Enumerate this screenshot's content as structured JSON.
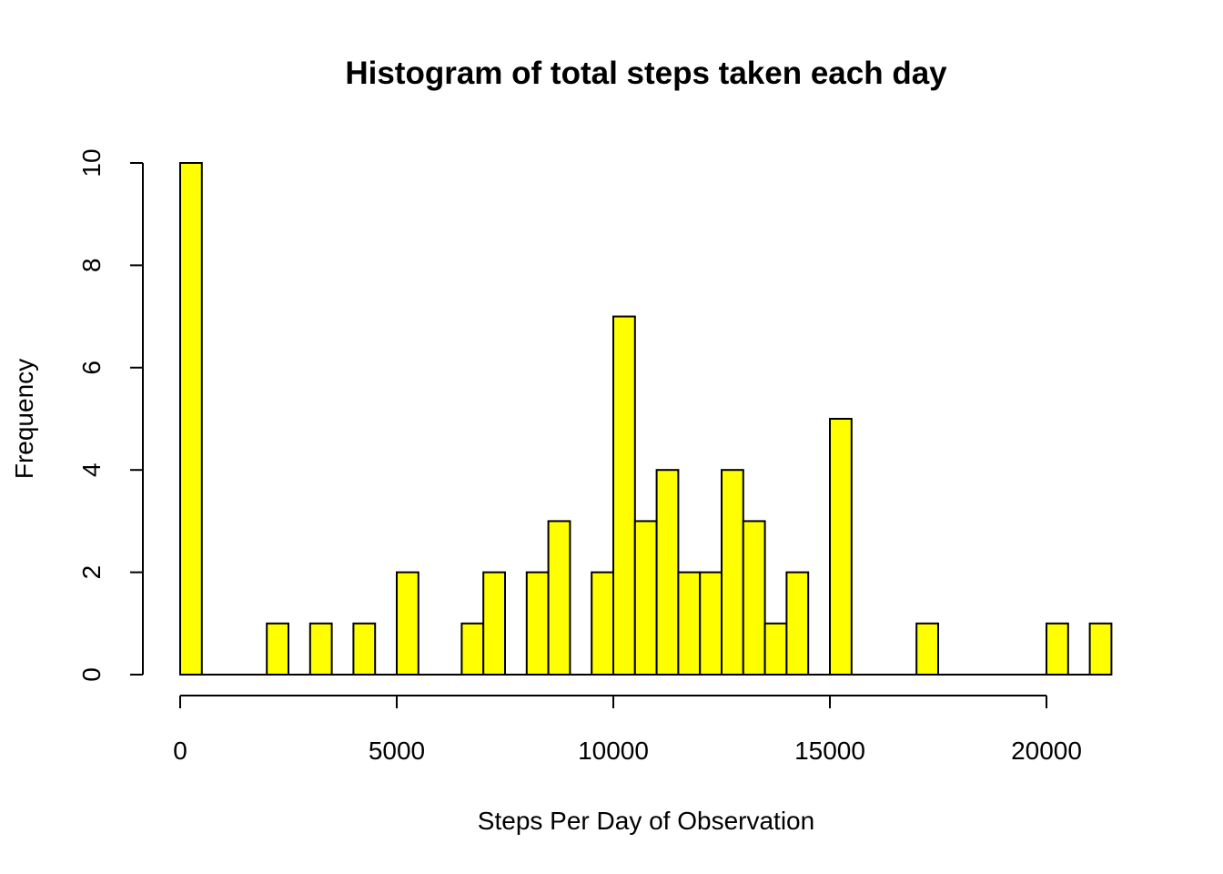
{
  "chart_data": {
    "type": "bar",
    "title": "Histogram of total steps taken each day",
    "xlabel": "Steps Per Day of Observation",
    "ylabel": "Frequency",
    "bar_color": "#ffff00",
    "bin_width": 500,
    "bins_start": [
      0,
      2000,
      3000,
      4000,
      5000,
      6500,
      7000,
      8000,
      8500,
      9500,
      10000,
      10500,
      11000,
      11500,
      12000,
      12500,
      13000,
      13500,
      14000,
      15000,
      17000,
      20000,
      21000
    ],
    "frequency": [
      10,
      1,
      1,
      1,
      2,
      1,
      2,
      2,
      3,
      2,
      7,
      3,
      4,
      2,
      2,
      4,
      3,
      1,
      2,
      5,
      1,
      1,
      1
    ],
    "xlim": [
      0,
      21500
    ],
    "ylim": [
      0,
      10
    ],
    "x_ticks": [
      0,
      5000,
      10000,
      15000,
      20000
    ],
    "y_ticks": [
      0,
      2,
      4,
      6,
      8,
      10
    ],
    "grid": false,
    "legend": "none"
  }
}
